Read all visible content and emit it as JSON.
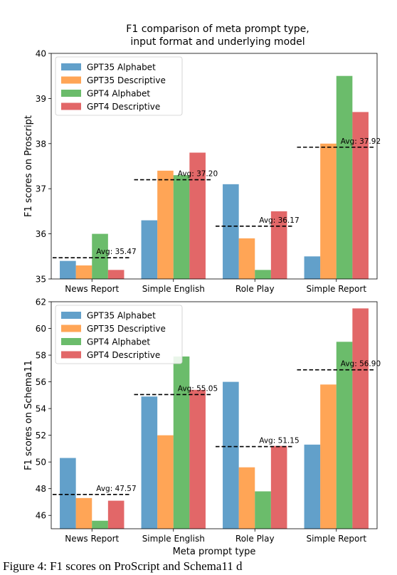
{
  "figure": {
    "title_line1": "F1 comparison of meta prompt type,",
    "title_line2": "input format and underlying model",
    "xlabel": "Meta prompt type"
  },
  "colors": {
    "GPT35 Alphabet": "#1f77b4",
    "GPT35 Descriptive": "#ff7f0e",
    "GPT4 Alphabet": "#2ca02c",
    "GPT4 Descriptive": "#d62728"
  },
  "chart_data": [
    {
      "type": "bar",
      "ylabel": "F1 scores on Proscript",
      "ylim": [
        35,
        40
      ],
      "yticks": [
        35,
        36,
        37,
        38,
        39,
        40
      ],
      "legend": "top-left",
      "grid": false,
      "categories": [
        "News Report",
        "Simple English",
        "Role Play",
        "Simple Report"
      ],
      "series": [
        {
          "name": "GPT35 Alphabet",
          "values": [
            35.4,
            36.3,
            37.1,
            35.5
          ]
        },
        {
          "name": "GPT35 Descriptive",
          "values": [
            35.3,
            37.4,
            35.9,
            38.0
          ]
        },
        {
          "name": "GPT4 Alphabet",
          "values": [
            36.0,
            37.3,
            35.2,
            39.5
          ]
        },
        {
          "name": "GPT4 Descriptive",
          "values": [
            35.2,
            37.8,
            36.5,
            38.7
          ]
        }
      ],
      "averages": [
        35.47,
        37.2,
        36.17,
        37.92
      ],
      "average_labels": [
        "Avg: 35.47",
        "Avg: 37.20",
        "Avg: 36.17",
        "Avg: 37.92"
      ]
    },
    {
      "type": "bar",
      "ylabel": "F1 scores on Schema11",
      "ylim": [
        45,
        62
      ],
      "yticks": [
        46,
        48,
        50,
        52,
        54,
        56,
        58,
        60,
        62
      ],
      "legend": "top-left",
      "grid": false,
      "categories": [
        "News Report",
        "Simple English",
        "Role Play",
        "Simple Report"
      ],
      "series": [
        {
          "name": "GPT35 Alphabet",
          "values": [
            50.3,
            54.9,
            56.0,
            51.3
          ]
        },
        {
          "name": "GPT35 Descriptive",
          "values": [
            47.3,
            52.0,
            49.6,
            55.8
          ]
        },
        {
          "name": "GPT4 Alphabet",
          "values": [
            45.6,
            57.9,
            47.8,
            59.0
          ]
        },
        {
          "name": "GPT4 Descriptive",
          "values": [
            47.1,
            55.4,
            51.2,
            61.5
          ]
        }
      ],
      "averages": [
        47.57,
        55.05,
        51.15,
        56.9
      ],
      "average_labels": [
        "Avg: 47.57",
        "Avg: 55.05",
        "Avg: 51.15",
        "Avg: 56.90"
      ]
    }
  ],
  "caption": "Figure 4: F1 scores on ProScript and Schema11 d"
}
